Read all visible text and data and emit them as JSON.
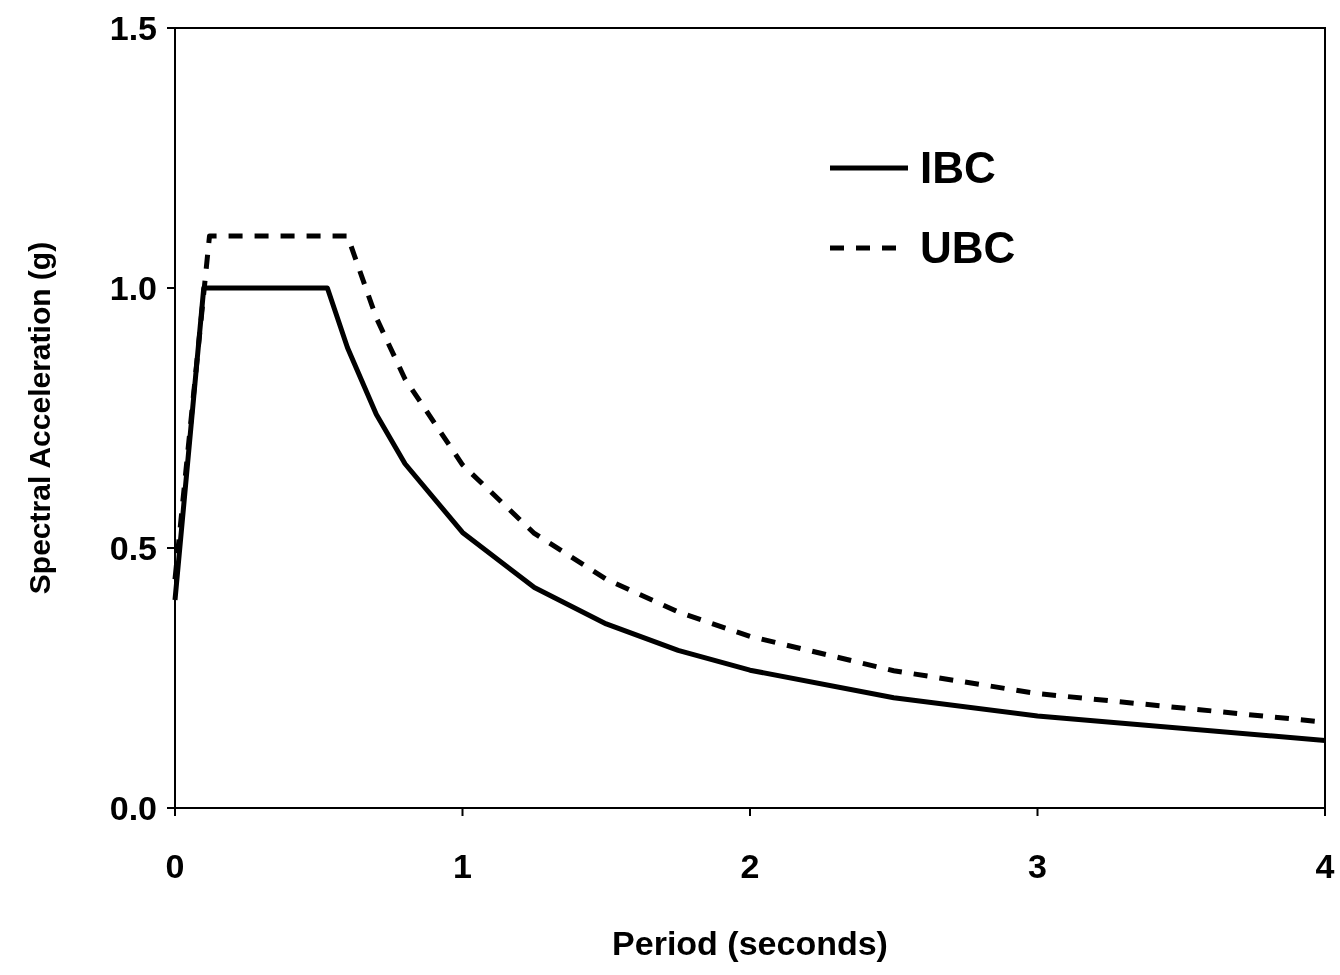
{
  "chart_data": {
    "type": "line",
    "xlabel": "Period (seconds)",
    "ylabel": "Spectral Acceleration (g)",
    "xlim": [
      0,
      4
    ],
    "ylim": [
      0,
      1.5
    ],
    "xticks": [
      0,
      1,
      2,
      3,
      4
    ],
    "yticks": [
      {
        "value": 0,
        "label": "0.0"
      },
      {
        "value": 0.5,
        "label": "0.5"
      },
      {
        "value": 1,
        "label": "1.0"
      },
      {
        "value": 1.5,
        "label": "1.5"
      }
    ],
    "grid": false,
    "legend": "top right",
    "marker": "none",
    "series": [
      {
        "name": "IBC",
        "color": "#000000",
        "line_style": "solid",
        "x": [
          0,
          0.1,
          0.53,
          0.6,
          0.7,
          0.8,
          1,
          1.25,
          1.5,
          1.75,
          2,
          2.5,
          3,
          4
        ],
        "values": [
          0.4,
          1,
          1,
          0.885,
          0.757,
          0.662,
          0.53,
          0.424,
          0.354,
          0.303,
          0.265,
          0.212,
          0.177,
          0.13
        ]
      },
      {
        "name": "UBC",
        "color": "#000000",
        "line_style": "dashed",
        "x": [
          0,
          0.12,
          0.6,
          0.7,
          0.8,
          1,
          1.25,
          1.5,
          1.75,
          2,
          2.5,
          3,
          4
        ],
        "values": [
          0.44,
          1.1,
          1.1,
          0.943,
          0.825,
          0.66,
          0.528,
          0.44,
          0.377,
          0.33,
          0.264,
          0.22,
          0.165
        ]
      }
    ]
  }
}
